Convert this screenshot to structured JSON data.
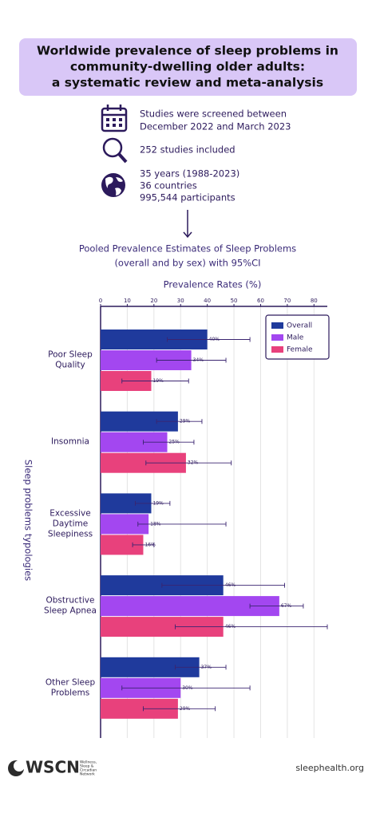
{
  "header": {
    "title_lines": [
      "Worldwide prevalence of sleep problems in",
      "community-dwelling older adults:",
      "a systematic review and meta-analysis"
    ]
  },
  "info": {
    "dates": [
      "Studies were screened between",
      "December 2022 and March 2023"
    ],
    "studies": "252 studies included",
    "scope": [
      "35 years (1988-2023)",
      "36    countries",
      "995,544 participants"
    ]
  },
  "chart_data": {
    "type": "bar",
    "orientation": "horizontal",
    "title_lines": [
      "Pooled Prevalence Estimates of Sleep Problems",
      "(overall and by sex) with 95%CI"
    ],
    "xlabel": "Prevalence Rates (%)",
    "ylabel": "Sleep problems typologies",
    "categories": [
      "Poor Sleep\nQuality",
      "Insomnia",
      "Excessive\nDaytime\nSleepiness",
      "Obstructive\nSleep Apnea",
      "Other Sleep\nProblems"
    ],
    "xlim": [
      0,
      85
    ],
    "xticks": [
      0,
      10,
      20,
      30,
      40,
      50,
      60,
      70,
      80
    ],
    "grid": true,
    "legend": "upper right",
    "series": [
      {
        "name": "Overall",
        "color": "#1f3a9c",
        "values": [
          40,
          29,
          19,
          46,
          37
        ],
        "value_labels": [
          "40%",
          "29%",
          "19%",
          "46%",
          "37%"
        ],
        "ci_low": [
          25,
          21,
          13,
          23,
          28
        ],
        "ci_high": [
          56,
          38,
          26,
          69,
          47
        ]
      },
      {
        "name": "Male",
        "color": "#a347f0",
        "values": [
          34,
          25,
          18,
          67,
          30
        ],
        "value_labels": [
          "34%",
          "25%",
          "18%",
          "67%",
          "30%"
        ],
        "ci_low": [
          21,
          16,
          14,
          56,
          8
        ],
        "ci_high": [
          47,
          35,
          47,
          76,
          56
        ]
      },
      {
        "name": "Female",
        "color": "#e8417c",
        "values": [
          19,
          32,
          16,
          46,
          29
        ],
        "value_labels": [
          "19%",
          "32%",
          "16%",
          "46%",
          "29%"
        ],
        "ci_low": [
          8,
          17,
          12,
          28,
          16
        ],
        "ci_high": [
          33,
          49,
          20,
          85,
          43
        ]
      }
    ]
  },
  "footer": {
    "logo": "WSCN",
    "logo_sub": [
      "Wellness,",
      "Sleep &",
      "Circadian",
      "Network"
    ],
    "url": "sleephealth.org"
  }
}
